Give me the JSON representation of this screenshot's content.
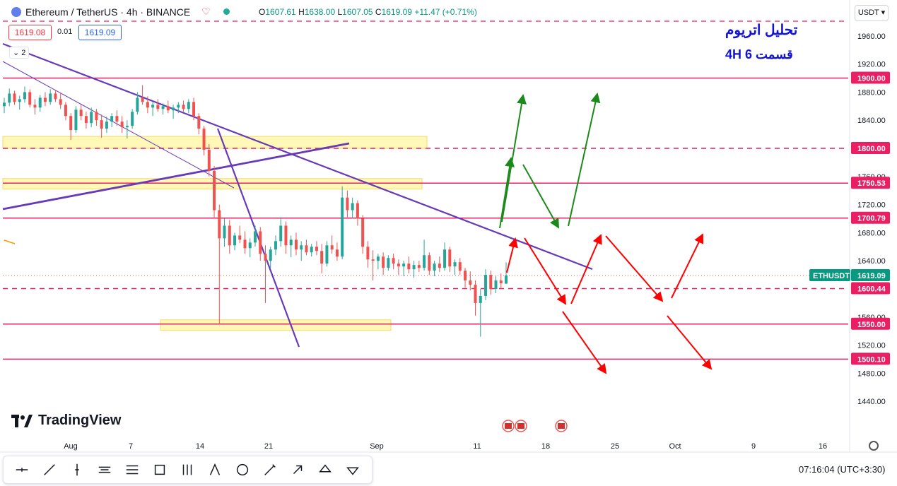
{
  "header": {
    "symbol": "Ethereum / TetherUS · 4h · BINANCE",
    "ohlc": {
      "o": "1607.61",
      "h": "1638.00",
      "l": "1607.05",
      "c": "1619.09",
      "chg": "+11.47 (+0.71%)"
    },
    "sell_price": "1619.08",
    "spread": "0.01",
    "buy_price": "1619.09",
    "collapse_count": "2",
    "currency": "USDT"
  },
  "annotation": {
    "title_fa": "تحلیل اتریوم",
    "subtitle_fa": "4H    قسمت 6"
  },
  "branding": {
    "name": "TradingView"
  },
  "status": {
    "time": "07:16:04 (UTC+3:30)"
  },
  "toolbar": {
    "tools": [
      "horizontal-line-icon",
      "trend-line-icon",
      "vertical-line-icon",
      "parallel-channel-icon",
      "fib-retracement-icon",
      "rectangle-icon",
      "pitchfork-icon",
      "triangle-icon",
      "circle-icon",
      "brush-icon",
      "arrow-icon",
      "arrow-up-icon",
      "arrow-down-icon"
    ]
  },
  "chart_data": {
    "type": "candlestick",
    "symbol": "ETHUSDT",
    "timeframe": "4h",
    "ylim": [
      1400,
      2000
    ],
    "y_ticks": [
      "1960.00",
      "1920.00",
      "1880.00",
      "1840.00",
      "1760.00",
      "1720.00",
      "1680.00",
      "1640.00",
      "1560.00",
      "1520.00",
      "1480.00",
      "1440.00"
    ],
    "x_ticks": [
      "Aug",
      "7",
      "14",
      "21",
      "Sep",
      "11",
      "18",
      "25",
      "Oct",
      "9",
      "16"
    ],
    "price_labels": [
      {
        "value": "1900.00",
        "color": "#e91e63"
      },
      {
        "value": "1800.00",
        "color": "#e91e63"
      },
      {
        "value": "1750.53",
        "color": "#e91e63"
      },
      {
        "value": "1700.79",
        "color": "#e91e63"
      },
      {
        "value": "1600.44",
        "color": "#e91e63"
      },
      {
        "value": "1550.00",
        "color": "#e91e63"
      },
      {
        "value": "1500.10",
        "color": "#e91e63"
      }
    ],
    "last_price": {
      "symbol": "ETHUSDT",
      "value": "1619.09",
      "color": "#089981"
    },
    "levels": [
      {
        "price": 1900,
        "style": "solid"
      },
      {
        "price": 1800,
        "style": "dashed"
      },
      {
        "price": 1750.53,
        "style": "solid"
      },
      {
        "price": 1700.79,
        "style": "solid"
      },
      {
        "price": 1600.44,
        "style": "dashed"
      },
      {
        "price": 1550,
        "style": "solid"
      },
      {
        "price": 1500.1,
        "style": "solid"
      }
    ],
    "zones": [
      {
        "from": 1800,
        "to": 1817
      },
      {
        "from": 1742,
        "to": 1757
      },
      {
        "from": 1541,
        "to": 1556
      }
    ],
    "candles": [
      [
        1860,
        1872,
        1850,
        1865
      ],
      [
        1865,
        1885,
        1860,
        1878
      ],
      [
        1878,
        1882,
        1862,
        1866
      ],
      [
        1866,
        1875,
        1855,
        1870
      ],
      [
        1870,
        1888,
        1865,
        1880
      ],
      [
        1880,
        1884,
        1858,
        1862
      ],
      [
        1862,
        1870,
        1848,
        1858
      ],
      [
        1858,
        1876,
        1852,
        1872
      ],
      [
        1872,
        1880,
        1860,
        1866
      ],
      [
        1866,
        1884,
        1862,
        1878
      ],
      [
        1878,
        1882,
        1866,
        1870
      ],
      [
        1870,
        1878,
        1856,
        1862
      ],
      [
        1862,
        1866,
        1840,
        1846
      ],
      [
        1846,
        1850,
        1812,
        1826
      ],
      [
        1826,
        1860,
        1822,
        1855
      ],
      [
        1855,
        1862,
        1840,
        1846
      ],
      [
        1846,
        1852,
        1828,
        1836
      ],
      [
        1836,
        1858,
        1830,
        1852
      ],
      [
        1852,
        1856,
        1832,
        1840
      ],
      [
        1840,
        1848,
        1815,
        1828
      ],
      [
        1828,
        1845,
        1822,
        1838
      ],
      [
        1838,
        1850,
        1830,
        1846
      ],
      [
        1846,
        1854,
        1832,
        1838
      ],
      [
        1838,
        1846,
        1822,
        1830
      ],
      [
        1830,
        1840,
        1814,
        1832
      ],
      [
        1832,
        1856,
        1828,
        1852
      ],
      [
        1852,
        1880,
        1848,
        1872
      ],
      [
        1872,
        1890,
        1862,
        1866
      ],
      [
        1866,
        1874,
        1850,
        1858
      ],
      [
        1858,
        1866,
        1846,
        1862
      ],
      [
        1862,
        1870,
        1852,
        1856
      ],
      [
        1856,
        1864,
        1848,
        1860
      ],
      [
        1860,
        1868,
        1850,
        1854
      ],
      [
        1854,
        1862,
        1842,
        1858
      ],
      [
        1858,
        1866,
        1850,
        1862
      ],
      [
        1862,
        1868,
        1852,
        1856
      ],
      [
        1856,
        1870,
        1850,
        1866
      ],
      [
        1866,
        1872,
        1840,
        1846
      ],
      [
        1846,
        1850,
        1820,
        1828
      ],
      [
        1828,
        1832,
        1790,
        1798
      ],
      [
        1798,
        1806,
        1760,
        1768
      ],
      [
        1768,
        1775,
        1700,
        1712
      ],
      [
        1712,
        1720,
        1550,
        1672
      ],
      [
        1672,
        1700,
        1660,
        1690
      ],
      [
        1690,
        1698,
        1650,
        1662
      ],
      [
        1662,
        1680,
        1655,
        1676
      ],
      [
        1676,
        1690,
        1665,
        1670
      ],
      [
        1670,
        1682,
        1650,
        1658
      ],
      [
        1658,
        1672,
        1645,
        1666
      ],
      [
        1666,
        1690,
        1660,
        1682
      ],
      [
        1682,
        1688,
        1640,
        1650
      ],
      [
        1650,
        1662,
        1580,
        1640
      ],
      [
        1640,
        1660,
        1630,
        1656
      ],
      [
        1656,
        1676,
        1648,
        1668
      ],
      [
        1668,
        1702,
        1660,
        1690
      ],
      [
        1690,
        1696,
        1650,
        1662
      ],
      [
        1662,
        1676,
        1645,
        1670
      ],
      [
        1670,
        1680,
        1648,
        1656
      ],
      [
        1656,
        1668,
        1640,
        1662
      ],
      [
        1662,
        1670,
        1648,
        1652
      ],
      [
        1652,
        1664,
        1646,
        1660
      ],
      [
        1660,
        1668,
        1648,
        1654
      ],
      [
        1654,
        1664,
        1622,
        1636
      ],
      [
        1636,
        1668,
        1632,
        1662
      ],
      [
        1662,
        1676,
        1650,
        1656
      ],
      [
        1656,
        1666,
        1640,
        1646
      ],
      [
        1646,
        1746,
        1642,
        1730
      ],
      [
        1730,
        1740,
        1702,
        1712
      ],
      [
        1712,
        1730,
        1700,
        1722
      ],
      [
        1722,
        1726,
        1690,
        1700
      ],
      [
        1700,
        1705,
        1650,
        1660
      ],
      [
        1660,
        1668,
        1630,
        1642
      ],
      [
        1642,
        1655,
        1612,
        1640
      ],
      [
        1640,
        1650,
        1628,
        1646
      ],
      [
        1646,
        1652,
        1620,
        1630
      ],
      [
        1630,
        1648,
        1626,
        1644
      ],
      [
        1644,
        1650,
        1628,
        1636
      ],
      [
        1636,
        1642,
        1620,
        1632
      ],
      [
        1632,
        1640,
        1618,
        1636
      ],
      [
        1636,
        1646,
        1622,
        1628
      ],
      [
        1628,
        1640,
        1616,
        1634
      ],
      [
        1634,
        1640,
        1624,
        1630
      ],
      [
        1630,
        1670,
        1626,
        1648
      ],
      [
        1648,
        1652,
        1620,
        1626
      ],
      [
        1626,
        1640,
        1618,
        1636
      ],
      [
        1636,
        1646,
        1624,
        1630
      ],
      [
        1630,
        1666,
        1626,
        1656
      ],
      [
        1656,
        1660,
        1624,
        1632
      ],
      [
        1632,
        1642,
        1620,
        1638
      ],
      [
        1638,
        1644,
        1620,
        1626
      ],
      [
        1626,
        1630,
        1602,
        1612
      ],
      [
        1612,
        1625,
        1598,
        1606
      ],
      [
        1606,
        1612,
        1562,
        1580
      ],
      [
        1580,
        1600,
        1532,
        1590
      ],
      [
        1590,
        1628,
        1584,
        1620
      ],
      [
        1620,
        1626,
        1592,
        1600
      ],
      [
        1600,
        1618,
        1594,
        1612
      ],
      [
        1612,
        1622,
        1600,
        1608
      ],
      [
        1607.61,
        1638,
        1607.05,
        1619.09
      ]
    ],
    "legend": "none",
    "grid": false
  }
}
